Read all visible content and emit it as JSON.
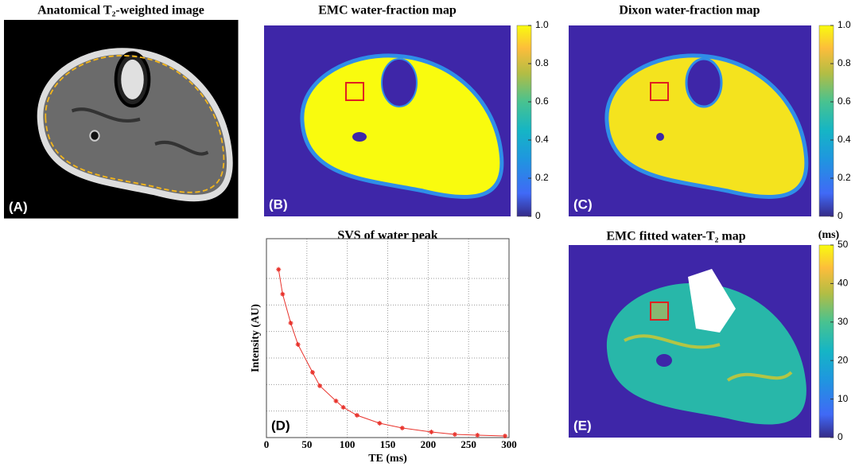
{
  "panels": [
    {
      "title": "Anatomical T₂-weighted image",
      "label": "(A)"
    },
    {
      "title": "EMC water-fraction map",
      "label": "(B)",
      "colorbar": {
        "lim": [
          0,
          1
        ],
        "ticks": [
          0,
          0.2,
          0.4,
          0.6,
          0.8,
          {
            "value": 1,
            "label": "1.0"
          }
        ]
      }
    },
    {
      "title": "Dixon water-fraction map",
      "label": "(C)",
      "colorbar": {
        "lim": [
          0,
          1
        ],
        "ticks": [
          0,
          0.2,
          0.4,
          0.6,
          0.8,
          {
            "value": 1,
            "label": "1.0"
          }
        ]
      }
    },
    {
      "title": "EMC fitted water-T₂ map",
      "label": "(E)",
      "colorbar": {
        "unit": "(ms)",
        "lim": [
          0,
          50
        ],
        "ticks": [
          0,
          10,
          20,
          30,
          40,
          50
        ]
      }
    }
  ],
  "chart_data": {
    "type": "line",
    "title": "SVS of water peak",
    "panel_label": "(D)",
    "xlabel": "TE (ms)",
    "ylabel": "Intensity (AU)",
    "x": [
      15,
      20,
      30,
      39,
      57,
      66,
      86,
      95,
      112,
      140,
      168,
      204,
      233,
      261,
      295
    ],
    "values": [
      6.34,
      5.41,
      4.32,
      3.51,
      2.46,
      1.95,
      1.38,
      1.14,
      0.84,
      0.54,
      0.36,
      0.21,
      0.12,
      0.09,
      0.06
    ],
    "color": "#e8322b",
    "marker": "star",
    "xlim": [
      0,
      300
    ],
    "xticks": [
      0,
      50,
      100,
      150,
      200,
      250,
      300
    ],
    "ylim": [
      0,
      7.5
    ],
    "yticks": [
      1,
      2,
      3,
      4,
      5,
      6
    ],
    "ytick_labels": false,
    "grid": true
  }
}
